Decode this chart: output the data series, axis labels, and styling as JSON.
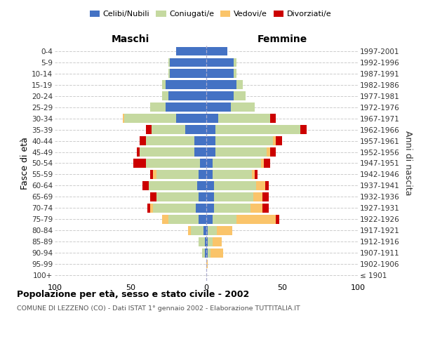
{
  "age_groups": [
    "100+",
    "95-99",
    "90-94",
    "85-89",
    "80-84",
    "75-79",
    "70-74",
    "65-69",
    "60-64",
    "55-59",
    "50-54",
    "45-49",
    "40-44",
    "35-39",
    "30-34",
    "25-29",
    "20-24",
    "15-19",
    "10-14",
    "5-9",
    "0-4"
  ],
  "birth_years": [
    "≤ 1901",
    "1902-1906",
    "1907-1911",
    "1912-1916",
    "1917-1921",
    "1922-1926",
    "1927-1931",
    "1932-1936",
    "1937-1941",
    "1942-1946",
    "1947-1951",
    "1952-1956",
    "1957-1961",
    "1962-1966",
    "1967-1971",
    "1972-1976",
    "1977-1981",
    "1982-1986",
    "1987-1991",
    "1992-1996",
    "1997-2001"
  ],
  "maschi": {
    "celibi": [
      0,
      0,
      1,
      1,
      2,
      5,
      7,
      5,
      6,
      5,
      4,
      8,
      8,
      14,
      20,
      27,
      25,
      27,
      24,
      24,
      20
    ],
    "coniugati": [
      0,
      0,
      2,
      4,
      8,
      20,
      28,
      28,
      32,
      28,
      36,
      36,
      32,
      22,
      34,
      10,
      4,
      2,
      1,
      1,
      0
    ],
    "vedovi": [
      0,
      0,
      0,
      0,
      2,
      4,
      2,
      0,
      0,
      2,
      0,
      0,
      0,
      0,
      1,
      0,
      0,
      0,
      0,
      0,
      0
    ],
    "divorziati": [
      0,
      0,
      0,
      0,
      0,
      0,
      2,
      4,
      4,
      2,
      8,
      2,
      4,
      4,
      0,
      0,
      0,
      0,
      0,
      0,
      0
    ]
  },
  "femmine": {
    "nubili": [
      0,
      0,
      1,
      1,
      1,
      4,
      5,
      5,
      5,
      4,
      4,
      6,
      6,
      6,
      8,
      16,
      18,
      20,
      18,
      18,
      14
    ],
    "coniugate": [
      0,
      0,
      2,
      3,
      6,
      16,
      24,
      26,
      28,
      26,
      32,
      34,
      38,
      56,
      34,
      16,
      8,
      4,
      2,
      2,
      0
    ],
    "vedove": [
      0,
      1,
      8,
      6,
      10,
      26,
      8,
      6,
      6,
      2,
      2,
      2,
      2,
      0,
      0,
      0,
      0,
      0,
      0,
      0,
      0
    ],
    "divorziate": [
      0,
      0,
      0,
      0,
      0,
      2,
      4,
      4,
      2,
      2,
      4,
      4,
      4,
      4,
      4,
      0,
      0,
      0,
      0,
      0,
      0
    ]
  },
  "colors": {
    "celibi": "#4472C4",
    "coniugati": "#C5D9A0",
    "vedovi": "#FAC46A",
    "divorziati": "#CC0000"
  },
  "xlim": 100,
  "title": "Popolazione per età, sesso e stato civile - 2002",
  "subtitle": "COMUNE DI LEZZENO (CO) - Dati ISTAT 1° gennaio 2002 - Elaborazione TUTTITALIA.IT",
  "ylabel_left": "Fasce di età",
  "ylabel_right": "Anni di nascita",
  "label_maschi": "Maschi",
  "label_femmine": "Femmine",
  "legend_labels": [
    "Celibi/Nubili",
    "Coniugati/e",
    "Vedovi/e",
    "Divorziati/e"
  ],
  "bg_color": "#ffffff",
  "grid_color": "#cccccc"
}
